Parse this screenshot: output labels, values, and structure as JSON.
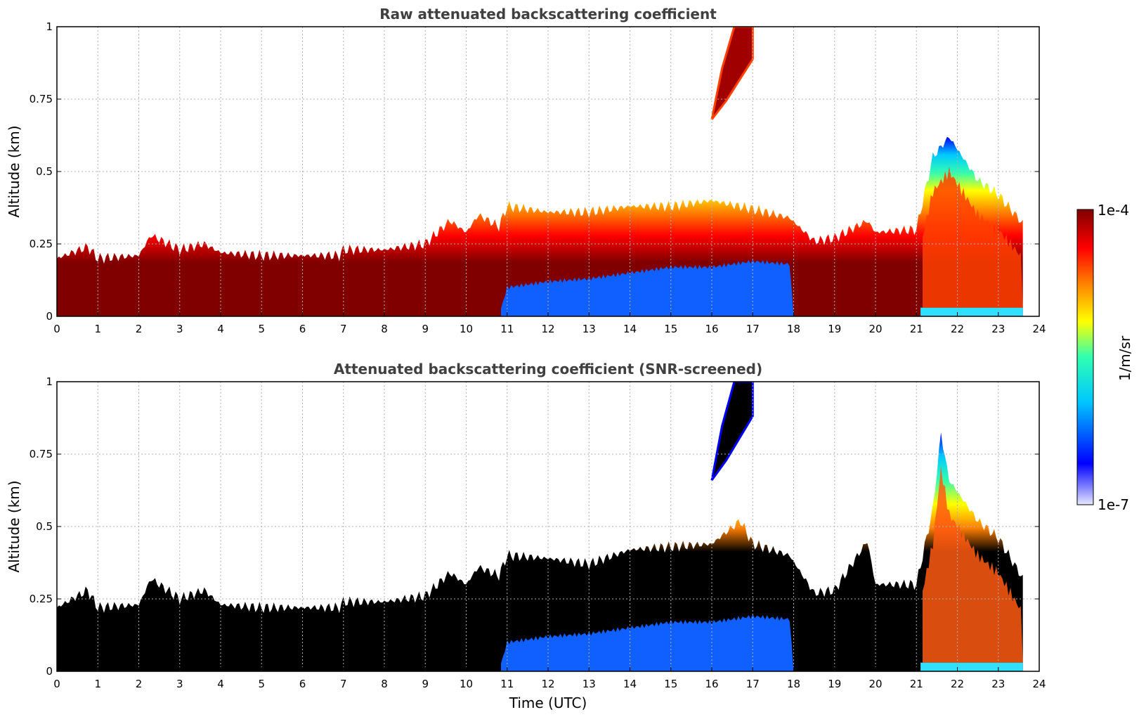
{
  "chart_data": [
    {
      "type": "heatmap",
      "title": "Raw attenuated backscattering coefficient",
      "xlabel": "",
      "ylabel": "Altitude (km)",
      "xlim": [
        0,
        24
      ],
      "ylim": [
        0,
        1
      ],
      "xticks": [
        "0",
        "1",
        "2",
        "3",
        "4",
        "5",
        "6",
        "7",
        "8",
        "9",
        "10",
        "11",
        "12",
        "13",
        "14",
        "15",
        "16",
        "17",
        "18",
        "19",
        "20",
        "21",
        "22",
        "23",
        "24"
      ],
      "yticks": [
        "0",
        "0.25",
        "0.5",
        "0.75",
        "1"
      ],
      "ytick_values": [
        0,
        0.25,
        0.5,
        0.75,
        1
      ],
      "grid": true,
      "screened": false,
      "layer_top_km": [
        [
          0,
          0.2
        ],
        [
          0.75,
          0.24
        ],
        [
          1,
          0.2
        ],
        [
          2,
          0.21
        ],
        [
          2.3,
          0.28
        ],
        [
          3,
          0.23
        ],
        [
          3.6,
          0.25
        ],
        [
          4,
          0.22
        ],
        [
          5,
          0.21
        ],
        [
          6,
          0.21
        ],
        [
          6.9,
          0.21
        ],
        [
          7,
          0.23
        ],
        [
          8,
          0.23
        ],
        [
          9,
          0.25
        ],
        [
          9.6,
          0.33
        ],
        [
          10,
          0.29
        ],
        [
          10.3,
          0.35
        ],
        [
          10.8,
          0.31
        ],
        [
          11,
          0.38
        ],
        [
          12,
          0.36
        ],
        [
          13,
          0.36
        ],
        [
          14,
          0.38
        ],
        [
          15,
          0.38
        ],
        [
          16,
          0.4
        ],
        [
          17,
          0.37
        ],
        [
          17.9,
          0.34
        ],
        [
          18.5,
          0.26
        ],
        [
          19,
          0.27
        ],
        [
          19.8,
          0.33
        ],
        [
          20,
          0.29
        ],
        [
          21,
          0.3
        ],
        [
          21.4,
          0.55
        ],
        [
          21.8,
          0.62
        ],
        [
          22.5,
          0.47
        ],
        [
          23,
          0.42
        ],
        [
          23.6,
          0.32
        ]
      ],
      "aerosol_bottom_km": [
        [
          0,
          0.0
        ],
        [
          10.8,
          0.0
        ],
        [
          11,
          0.1
        ],
        [
          12,
          0.12
        ],
        [
          13,
          0.13
        ],
        [
          14,
          0.15
        ],
        [
          15,
          0.17
        ],
        [
          16,
          0.17
        ],
        [
          17,
          0.19
        ],
        [
          17.9,
          0.18
        ],
        [
          18,
          0.0
        ],
        [
          23.6,
          0.0
        ]
      ],
      "elevated_layer": {
        "time_start": 16.0,
        "time_end": 17.0,
        "alt_bottom_km": 0.68,
        "alt_top_km": 1.0
      }
    },
    {
      "type": "heatmap",
      "title": "Attenuated backscattering coefficient (SNR-screened)",
      "xlabel": "Time (UTC)",
      "ylabel": "Altitude (km)",
      "xlim": [
        0,
        24
      ],
      "ylim": [
        0,
        1
      ],
      "xticks": [
        "0",
        "1",
        "2",
        "3",
        "4",
        "5",
        "6",
        "7",
        "8",
        "9",
        "10",
        "11",
        "12",
        "13",
        "14",
        "15",
        "16",
        "17",
        "18",
        "19",
        "20",
        "21",
        "22",
        "23",
        "24"
      ],
      "yticks": [
        "0",
        "0.25",
        "0.5",
        "0.75",
        "1"
      ],
      "ytick_values": [
        0,
        0.25,
        0.5,
        0.75,
        1
      ],
      "grid": true,
      "screened": true,
      "layer_top_km": [
        [
          0,
          0.22
        ],
        [
          0.75,
          0.28
        ],
        [
          1,
          0.22
        ],
        [
          2,
          0.23
        ],
        [
          2.3,
          0.32
        ],
        [
          3,
          0.25
        ],
        [
          3.6,
          0.28
        ],
        [
          4,
          0.23
        ],
        [
          5,
          0.22
        ],
        [
          6,
          0.22
        ],
        [
          6.9,
          0.22
        ],
        [
          7,
          0.24
        ],
        [
          8,
          0.24
        ],
        [
          9,
          0.26
        ],
        [
          9.6,
          0.34
        ],
        [
          10,
          0.3
        ],
        [
          10.3,
          0.36
        ],
        [
          10.8,
          0.33
        ],
        [
          11,
          0.4
        ],
        [
          12,
          0.39
        ],
        [
          13,
          0.37
        ],
        [
          14,
          0.42
        ],
        [
          15,
          0.43
        ],
        [
          16,
          0.44
        ],
        [
          16.7,
          0.52
        ],
        [
          17,
          0.44
        ],
        [
          17.9,
          0.4
        ],
        [
          18.5,
          0.27
        ],
        [
          19,
          0.28
        ],
        [
          19.8,
          0.45
        ],
        [
          20,
          0.3
        ],
        [
          21,
          0.3
        ],
        [
          21.4,
          0.56
        ],
        [
          21.6,
          0.82
        ],
        [
          21.8,
          0.66
        ],
        [
          22.5,
          0.52
        ],
        [
          23,
          0.46
        ],
        [
          23.6,
          0.32
        ]
      ],
      "aerosol_bottom_km": [
        [
          0,
          0.0
        ],
        [
          10.8,
          0.0
        ],
        [
          11,
          0.1
        ],
        [
          12,
          0.12
        ],
        [
          13,
          0.13
        ],
        [
          14,
          0.15
        ],
        [
          15,
          0.17
        ],
        [
          16,
          0.17
        ],
        [
          17,
          0.19
        ],
        [
          17.9,
          0.18
        ],
        [
          18,
          0.0
        ],
        [
          23.6,
          0.0
        ]
      ],
      "elevated_layer": {
        "time_start": 16.0,
        "time_end": 17.0,
        "alt_bottom_km": 0.66,
        "alt_top_km": 1.0
      }
    }
  ],
  "colorbar": {
    "label": "1/m/sr",
    "max_label": "1e-4",
    "min_label": "1e-7",
    "colors": [
      "#e8e8ff",
      "#0000ff",
      "#00c8ff",
      "#30ffb0",
      "#ffff00",
      "#ff8000",
      "#ff0000",
      "#800000"
    ]
  },
  "screened_core_color": "#000000"
}
